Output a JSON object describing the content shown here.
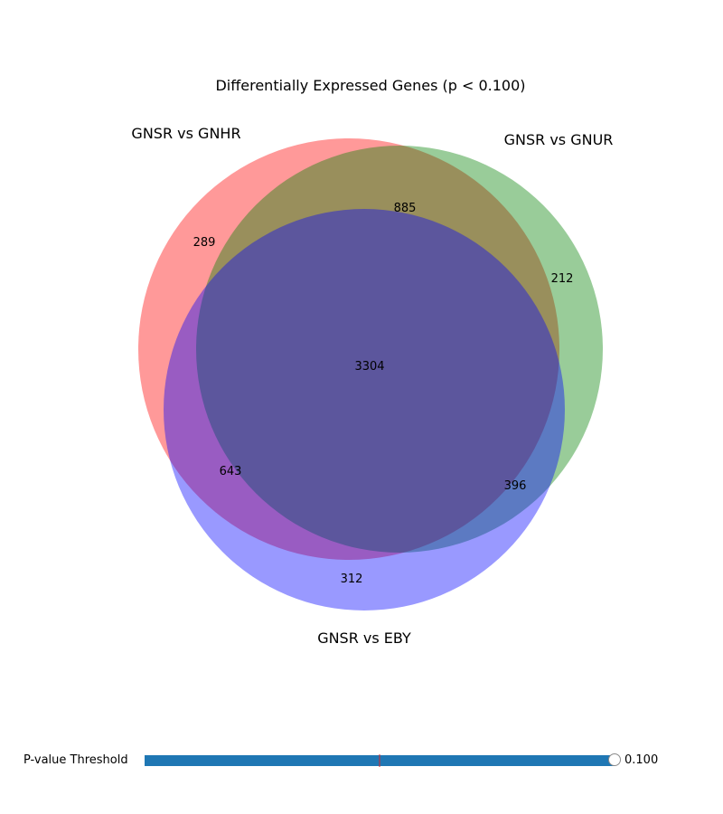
{
  "chart_data": {
    "type": "venn",
    "title": "Differentially Expressed Genes (p < 0.100)",
    "sets": [
      {
        "name": "GNSR vs GNHR",
        "color": "#ff0000"
      },
      {
        "name": "GNSR vs GNUR",
        "color": "#008000"
      },
      {
        "name": "GNSR vs EBY",
        "color": "#0000ff"
      }
    ],
    "subsets": [
      {
        "sets": [
          "GNSR vs GNHR"
        ],
        "value": 289
      },
      {
        "sets": [
          "GNSR vs GNUR"
        ],
        "value": 212
      },
      {
        "sets": [
          "GNSR vs GNHR",
          "GNSR vs GNUR"
        ],
        "value": 885
      },
      {
        "sets": [
          "GNSR vs EBY"
        ],
        "value": 312
      },
      {
        "sets": [
          "GNSR vs GNHR",
          "GNSR vs EBY"
        ],
        "value": 643
      },
      {
        "sets": [
          "GNSR vs GNUR",
          "GNSR vs EBY"
        ],
        "value": 396
      },
      {
        "sets": [
          "GNSR vs GNHR",
          "GNSR vs GNUR",
          "GNSR vs EBY"
        ],
        "value": 3304
      }
    ],
    "fill_alpha": 0.4
  },
  "slider": {
    "label": "P-value Threshold",
    "min": 0.0,
    "max": 0.1,
    "value": 0.1,
    "initial_value": 0.05,
    "value_text": "0.100",
    "track_color": "#1f77b4",
    "initial_marker_color": "#d62728"
  }
}
